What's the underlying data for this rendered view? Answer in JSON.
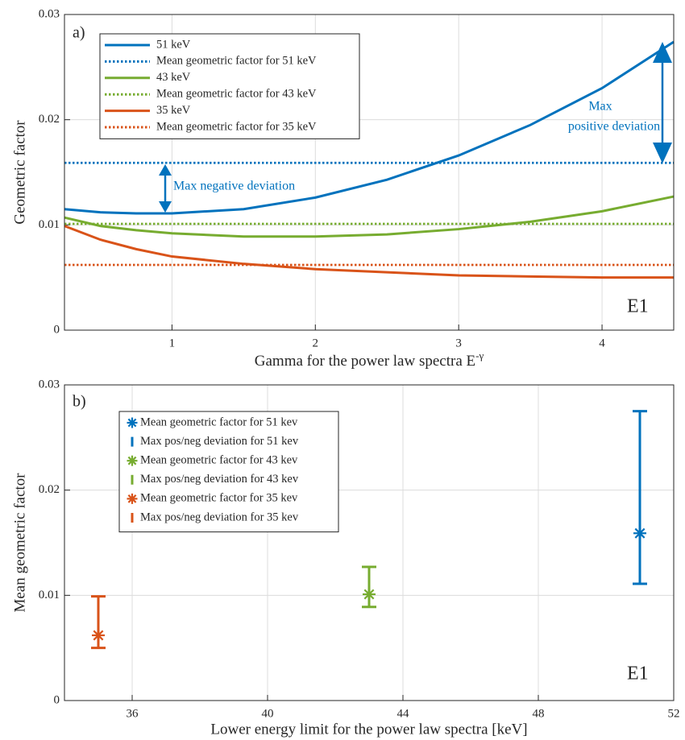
{
  "chart_data": [
    {
      "type": "line",
      "xlabel": [
        "Gamma for the power law spectra E",
        "-γ"
      ],
      "ylabel": "Geometric factor",
      "annotations": [
        "a)",
        "E1",
        "Max negative deviation",
        "Max",
        "positive deviation"
      ],
      "x": [
        0.25,
        0.5,
        0.75,
        1,
        1.5,
        2,
        2.5,
        3,
        3.5,
        4,
        4.5
      ],
      "xlim": [
        0.25,
        4.5
      ],
      "xticks": [
        1,
        2,
        3,
        4
      ],
      "ylim": [
        0,
        0.03
      ],
      "yticks": [
        0,
        0.01,
        0.02,
        0.03
      ],
      "grid": true,
      "series": [
        {
          "name": "51 keV",
          "color": "#0072BD",
          "style": "solid",
          "values": [
            0.0115,
            0.0112,
            0.0111,
            0.0111,
            0.0115,
            0.0126,
            0.0143,
            0.0166,
            0.0195,
            0.023,
            0.0274
          ]
        },
        {
          "name": "Mean geometric factor for 51 keV",
          "color": "#0072BD",
          "style": "dotted",
          "values": [
            0.0159,
            0.0159,
            0.0159,
            0.0159,
            0.0159,
            0.0159,
            0.0159,
            0.0159,
            0.0159,
            0.0159,
            0.0159
          ]
        },
        {
          "name": "43 keV",
          "color": "#77AC30",
          "style": "solid",
          "values": [
            0.0107,
            0.0099,
            0.0095,
            0.0092,
            0.0089,
            0.0089,
            0.0091,
            0.0096,
            0.0103,
            0.0113,
            0.0127
          ]
        },
        {
          "name": "Mean geometric factor for 43 keV",
          "color": "#77AC30",
          "style": "dotted",
          "values": [
            0.0101,
            0.0101,
            0.0101,
            0.0101,
            0.0101,
            0.0101,
            0.0101,
            0.0101,
            0.0101,
            0.0101,
            0.0101
          ]
        },
        {
          "name": "35 keV",
          "color": "#D95319",
          "style": "solid",
          "values": [
            0.0099,
            0.0086,
            0.0077,
            0.007,
            0.0063,
            0.0058,
            0.0055,
            0.0052,
            0.0051,
            0.005,
            0.005
          ]
        },
        {
          "name": "Mean geometric factor for 35 keV",
          "color": "#D95319",
          "style": "dotted",
          "values": [
            0.0062,
            0.0062,
            0.0062,
            0.0062,
            0.0062,
            0.0062,
            0.0062,
            0.0062,
            0.0062,
            0.0062,
            0.0062
          ]
        }
      ]
    },
    {
      "type": "errorbar",
      "xlabel": [
        "Lower energy limit for the power law spectra [keV]"
      ],
      "ylabel": "Mean geometric factor",
      "annotations": [
        "b)",
        "E1"
      ],
      "xlim": [
        34,
        52
      ],
      "xticks": [
        36,
        40,
        44,
        48,
        52
      ],
      "ylim": [
        0,
        0.03
      ],
      "yticks": [
        0,
        0.01,
        0.02,
        0.03
      ],
      "grid": true,
      "series": [
        {
          "name": "Mean geometric factor for 51 kev",
          "error_name": "Max pos/neg deviation for 51 kev",
          "color": "#0072BD",
          "x": [
            51
          ],
          "values": [
            0.0159
          ],
          "lower": [
            0.0111
          ],
          "upper": [
            0.0275
          ]
        },
        {
          "name": "Mean geometric factor for 43 kev",
          "error_name": "Max pos/neg deviation for 43 kev",
          "color": "#77AC30",
          "x": [
            43
          ],
          "values": [
            0.0101
          ],
          "lower": [
            0.0089
          ],
          "upper": [
            0.0127
          ]
        },
        {
          "name": "Mean geometric factor for 35 kev",
          "error_name": "Max pos/neg deviation for 35 kev",
          "color": "#D95319",
          "x": [
            35
          ],
          "values": [
            0.0062
          ],
          "lower": [
            0.005
          ],
          "upper": [
            0.0099
          ]
        }
      ]
    }
  ]
}
